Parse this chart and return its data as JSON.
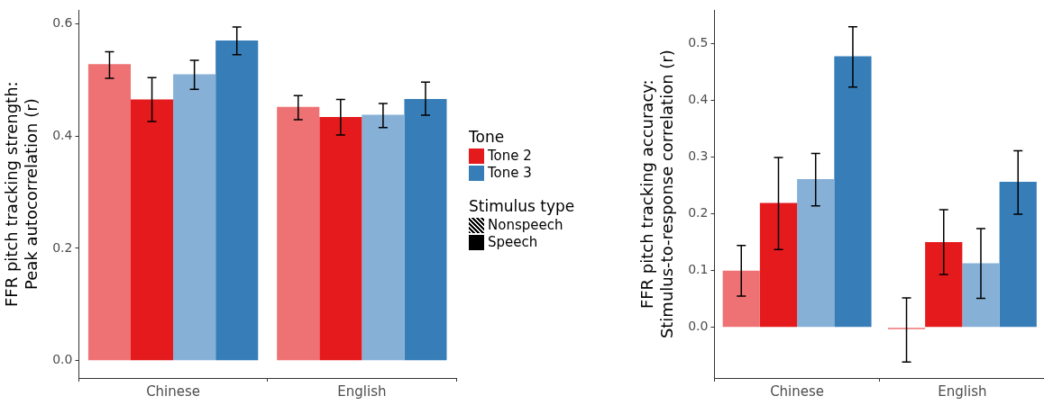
{
  "chart_data": [
    {
      "type": "bar",
      "ylabel": "FFR pitch tracking strength:\nPeak autocorrelation (r)",
      "categories": [
        "Chinese",
        "English"
      ],
      "series": [
        {
          "color": "#ee7273",
          "values": [
            0.528,
            0.452
          ],
          "errors": [
            [
              0.503,
              0.55
            ],
            [
              0.429,
              0.472
            ]
          ]
        },
        {
          "name": "Tone 2",
          "color": "#e41a1c",
          "values": [
            0.465,
            0.434
          ],
          "errors": [
            [
              0.426,
              0.504
            ],
            [
              0.402,
              0.465
            ]
          ]
        },
        {
          "color": "#86b0d6",
          "values": [
            0.51,
            0.438
          ],
          "errors": [
            [
              0.483,
              0.535
            ],
            [
              0.415,
              0.458
            ]
          ]
        },
        {
          "name": "Tone 3",
          "color": "#377eb8",
          "values": [
            0.57,
            0.466
          ],
          "errors": [
            [
              0.545,
              0.594
            ],
            [
              0.437,
              0.496
            ]
          ]
        }
      ],
      "ylim": [
        -0.031,
        0.624
      ],
      "yticks": [
        {
          "value": 0,
          "label": "0.0"
        },
        {
          "value": 0.2,
          "label": "0.2"
        },
        {
          "value": 0.4,
          "label": "0.4"
        },
        {
          "value": 0.6,
          "label": "0.6"
        }
      ],
      "grid": false,
      "legend": "right",
      "legend_title": "Tone",
      "annotations": [
        "Stimulus type",
        "Nonspeech",
        "Speech"
      ]
    },
    {
      "type": "bar",
      "ylabel": "FFR pitch tracking accuracy:\nStimulus-to-response correlation (r)",
      "categories": [
        "Chinese",
        "English"
      ],
      "series": [
        {
          "color": "#ee7273",
          "values": [
            0.1,
            -0.003
          ],
          "errors": [
            [
              0.055,
              0.144
            ],
            [
              -0.061,
              0.052
            ]
          ]
        },
        {
          "color": "#e41a1c",
          "values": [
            0.219,
            0.15
          ],
          "errors": [
            [
              0.137,
              0.299
            ],
            [
              0.093,
              0.207
            ]
          ]
        },
        {
          "color": "#86b0d6",
          "values": [
            0.261,
            0.113
          ],
          "errors": [
            [
              0.214,
              0.306
            ],
            [
              0.051,
              0.174
            ]
          ]
        },
        {
          "color": "#377eb8",
          "values": [
            0.477,
            0.256
          ],
          "errors": [
            [
              0.423,
              0.529
            ],
            [
              0.199,
              0.311
            ]
          ]
        }
      ],
      "ylim": [
        -0.089,
        0.558
      ],
      "yticks": [
        {
          "value": 0,
          "label": "0.0"
        },
        {
          "value": 0.1,
          "label": "0.1"
        },
        {
          "value": 0.2,
          "label": "0.2"
        },
        {
          "value": 0.3,
          "label": "0.3"
        },
        {
          "value": 0.4,
          "label": "0.4"
        },
        {
          "value": 0.5,
          "label": "0.5"
        }
      ],
      "grid": false,
      "legend": false
    }
  ]
}
